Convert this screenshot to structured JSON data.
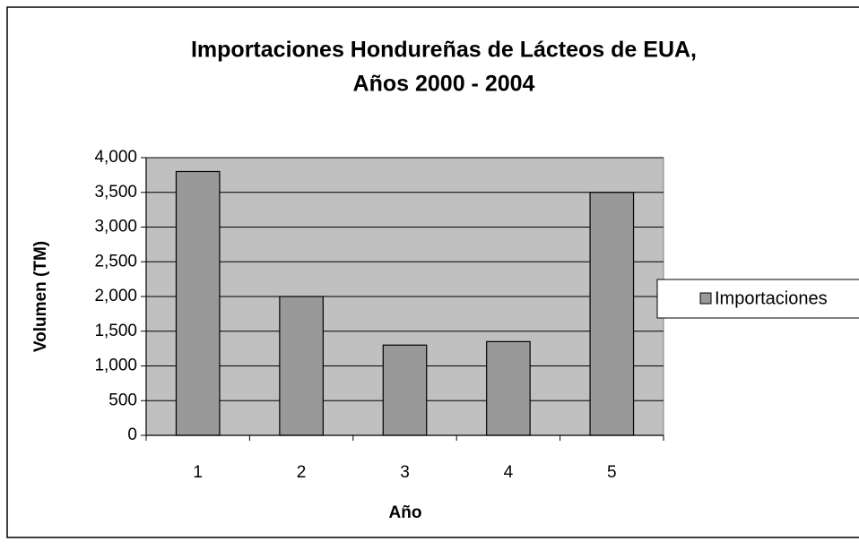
{
  "chart_data": {
    "type": "bar",
    "title": "Importaciones Hondureñas de Lácteos de EUA,",
    "subtitle": "Años 2000 - 2004",
    "x_label": "Año",
    "y_label": "Volumen (TM)",
    "categories": [
      "1",
      "2",
      "3",
      "4",
      "5"
    ],
    "series": [
      {
        "name": "Importaciones",
        "color": "#999999",
        "values": [
          3800,
          2000,
          1300,
          1350,
          3500
        ]
      }
    ],
    "ylim": [
      0,
      4000
    ],
    "yticks": [
      0,
      500,
      {
        "value": 1000,
        "label": "1,000"
      },
      {
        "value": 1500,
        "label": "1,500"
      },
      {
        "value": 2000,
        "label": "2,000"
      },
      {
        "value": 2500,
        "label": "2,500"
      },
      {
        "value": 3000,
        "label": "3,000"
      },
      {
        "value": 3500,
        "label": "3,500"
      },
      {
        "value": 4000,
        "label": "4,000"
      }
    ],
    "grid": true,
    "legend": "right"
  }
}
